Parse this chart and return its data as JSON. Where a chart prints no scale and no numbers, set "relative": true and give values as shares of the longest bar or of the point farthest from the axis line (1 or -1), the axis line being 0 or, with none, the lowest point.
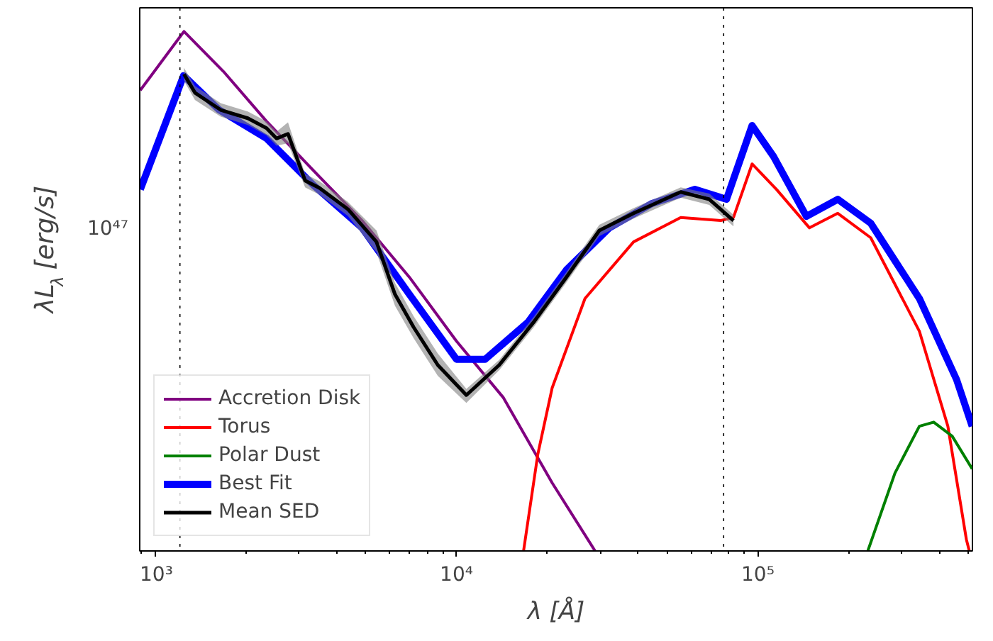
{
  "chart_data": {
    "type": "line",
    "relative": true,
    "log": "x",
    "xlabel": "λ [Å]",
    "ylabel": "λL$_{λ}$ [erg/s]",
    "xlim": [
      890,
      515000
    ],
    "xticks": [
      {
        "value": 1000,
        "label": "10³"
      },
      {
        "value": 10000,
        "label": "10⁴"
      },
      {
        "value": 100000,
        "label": "10⁵"
      }
    ],
    "annotations": [
      "10⁴⁷"
    ],
    "ref_lines": [
      {
        "axis": "x",
        "value": 1210,
        "color": "#000000",
        "line_style": "dotted"
      },
      {
        "axis": "x",
        "value": 77000,
        "color": "#000000",
        "line_style": "dotted"
      }
    ],
    "legend": "bottom left",
    "series": [
      {
        "name": "Accretion Disk",
        "color": "#800080",
        "x": [
          894,
          1248,
          1687,
          2345,
          3357,
          4864,
          6982,
          10000,
          14320,
          20780,
          28840
        ],
        "values": [
          0.887,
          1.0,
          0.923,
          0.827,
          0.732,
          0.636,
          0.527,
          0.404,
          0.295,
          0.131,
          0
        ]
      },
      {
        "name": "Torus",
        "color": "#ff0000",
        "x": [
          16700,
          18620,
          20780,
          26700,
          38700,
          55480,
          75300,
          83000,
          95700,
          115300,
          148300,
          184100,
          236800,
          343400,
          426900,
          491800,
          502800
        ],
        "values": [
          0,
          0.186,
          0.314,
          0.486,
          0.595,
          0.642,
          0.636,
          0.642,
          0.745,
          0.696,
          0.622,
          0.65,
          0.603,
          0.423,
          0.24,
          0.022,
          0
        ]
      },
      {
        "name": "Polar Dust",
        "color": "#008000",
        "x": [
          231600,
          285000,
          343400,
          383100,
          441300,
          514000
        ],
        "values": [
          0,
          0.15,
          0.24,
          0.248,
          0.221,
          0.158
        ]
      },
      {
        "name": "Best Fit",
        "color": "#0000ff",
        "x": [
          894,
          1244,
          1634,
          2345,
          3357,
          4864,
          6982,
          10000,
          12450,
          17260,
          23170,
          32140,
          44570,
          61800,
          78700,
          95700,
          112800,
          144900,
          184100,
          236800,
          343400,
          456200,
          514000
        ],
        "values": [
          0.696,
          0.915,
          0.849,
          0.794,
          0.704,
          0.622,
          0.494,
          0.369,
          0.369,
          0.44,
          0.541,
          0.622,
          0.669,
          0.696,
          0.677,
          0.819,
          0.759,
          0.644,
          0.677,
          0.631,
          0.486,
          0.33,
          0.24
        ]
      },
      {
        "name": "Mean SED",
        "color": "#000000",
        "x": [
          1248,
          1357,
          1652,
          2032,
          2345,
          2531,
          2762,
          3148,
          3510,
          4364,
          5430,
          6254,
          7207,
          8672,
          10790,
          13870,
          18020,
          23170,
          29790,
          38700,
          55480,
          69000,
          83000
        ],
        "values": [
          0.918,
          0.882,
          0.849,
          0.833,
          0.814,
          0.794,
          0.803,
          0.713,
          0.699,
          0.658,
          0.595,
          0.494,
          0.431,
          0.358,
          0.3,
          0.358,
          0.44,
          0.527,
          0.617,
          0.65,
          0.691,
          0.677,
          0.636
        ],
        "lower": [
          0.905,
          0.868,
          0.836,
          0.82,
          0.8,
          0.78,
          0.785,
          0.7,
          0.686,
          0.645,
          0.575,
          0.472,
          0.41,
          0.337,
          0.285,
          0.348,
          0.43,
          0.517,
          0.606,
          0.64,
          0.68,
          0.666,
          0.625
        ],
        "upper": [
          0.93,
          0.895,
          0.862,
          0.846,
          0.827,
          0.807,
          0.825,
          0.726,
          0.712,
          0.672,
          0.617,
          0.516,
          0.452,
          0.38,
          0.312,
          0.368,
          0.45,
          0.537,
          0.628,
          0.66,
          0.7,
          0.688,
          0.647
        ]
      }
    ]
  }
}
